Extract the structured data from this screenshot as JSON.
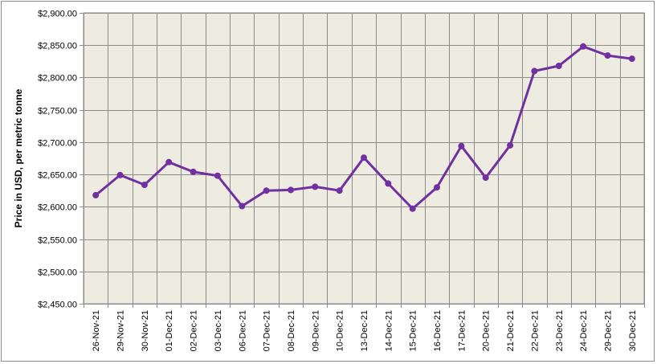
{
  "chart_data": {
    "type": "line",
    "title": "",
    "xlabel": "",
    "ylabel": "Price in USD, per metric tonne",
    "ylim": [
      2450,
      2900
    ],
    "ytick_step": 50,
    "ytick_labels": [
      "$2,450.00",
      "$2,500.00",
      "$2,550.00",
      "$2,600.00",
      "$2,650.00",
      "$2,700.00",
      "$2,750.00",
      "$2,800.00",
      "$2,850.00",
      "$2,900.00"
    ],
    "grid": true,
    "legend": "none",
    "plot_background": "#eeebe0",
    "grid_color": "#8c8c8c",
    "line_color": "#7030a0",
    "categories": [
      "26-Nov-21",
      "29-Nov-21",
      "30-Nov-21",
      "01-Dec-21",
      "02-Dec-21",
      "03-Dec-21",
      "06-Dec-21",
      "07-Dec-21",
      "08-Dec-21",
      "09-Dec-21",
      "10-Dec-21",
      "13-Dec-21",
      "14-Dec-21",
      "15-Dec-21",
      "16-Dec-21",
      "17-Dec-21",
      "20-Dec-21",
      "21-Dec-21",
      "22-Dec-21",
      "23-Dec-21",
      "24-Dec-21",
      "29-Dec-21",
      "30-Dec-21"
    ],
    "series": [
      {
        "values": [
          2618,
          2649,
          2634,
          2669,
          2654,
          2648,
          2601,
          2625,
          2626,
          2631,
          2625,
          2676,
          2636,
          2597,
          2630,
          2694,
          2645,
          2695,
          2810,
          2818,
          2848,
          2834,
          2829
        ]
      }
    ]
  }
}
